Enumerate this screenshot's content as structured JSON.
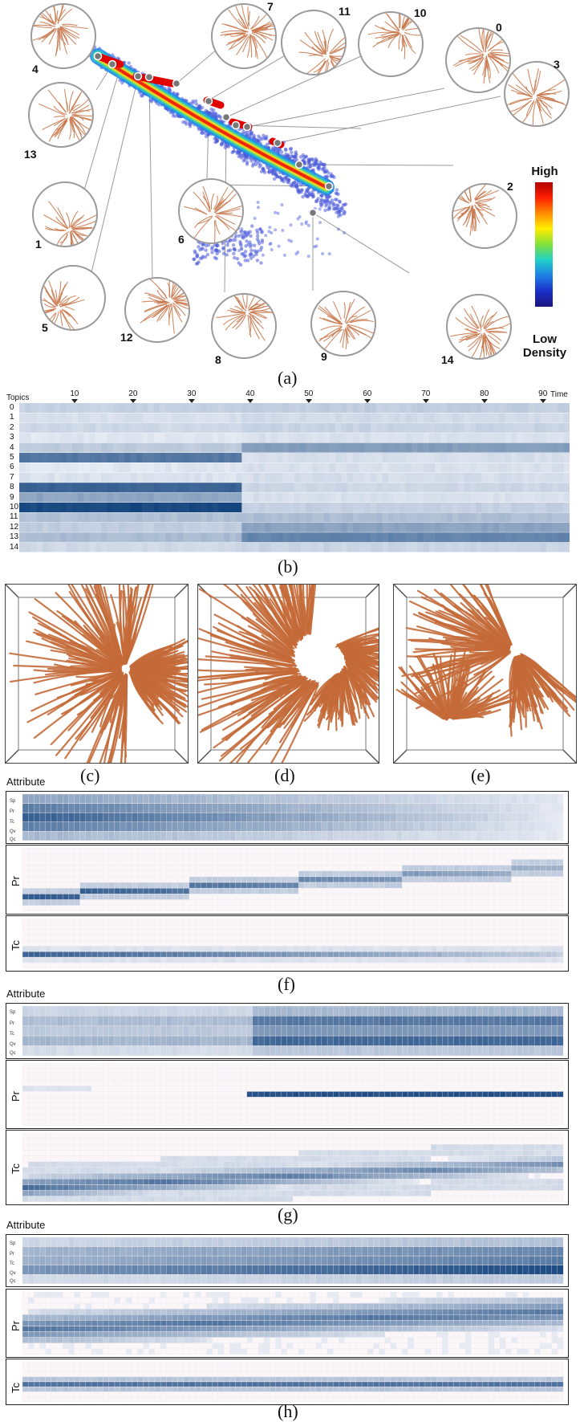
{
  "panels": {
    "a": {
      "caption": "(a)",
      "legend": {
        "high": "High",
        "low": "Low",
        "density": "Density"
      },
      "cluster_labels": [
        "4",
        "13",
        "1",
        "5",
        "12",
        "6",
        "8",
        "9",
        "14",
        "2",
        "3",
        "0",
        "10",
        "11",
        "7"
      ]
    },
    "b": {
      "caption": "(b)",
      "axis_title": "Topics",
      "time_label": "Time",
      "ticks": [
        "10",
        "20",
        "30",
        "40",
        "50",
        "60",
        "70",
        "80",
        "90"
      ],
      "topics": [
        "0",
        "1",
        "2",
        "3",
        "4",
        "5",
        "6",
        "7",
        "8",
        "9",
        "10",
        "11",
        "12",
        "13",
        "14"
      ]
    },
    "c": {
      "caption": "(c)"
    },
    "d": {
      "caption": "(d)"
    },
    "e": {
      "caption": "(e)"
    },
    "f": {
      "caption": "(f)",
      "title": "Attribute",
      "rows": [
        "Sp",
        "Pr",
        "Tc",
        "Qv",
        "Qc"
      ],
      "pr": "Pr",
      "tc": "Tc"
    },
    "g": {
      "caption": "(g)",
      "title": "Attribute",
      "rows": [
        "Sp",
        "Pr",
        "Tc",
        "Qv",
        "Qc"
      ],
      "pr": "Pr",
      "tc": "Tc"
    },
    "h": {
      "caption": "(h)",
      "title": "Attribute",
      "rows": [
        "Sp",
        "Pr",
        "Tc",
        "Qv",
        "Qc"
      ],
      "pr": "Pr",
      "tc": "Tc"
    }
  },
  "colors": {
    "bubble_border": "#9a9a9a",
    "fiber": "#c8764a",
    "heat_dark": "#0d3f7a",
    "heat_light": "#eef1f8"
  }
}
